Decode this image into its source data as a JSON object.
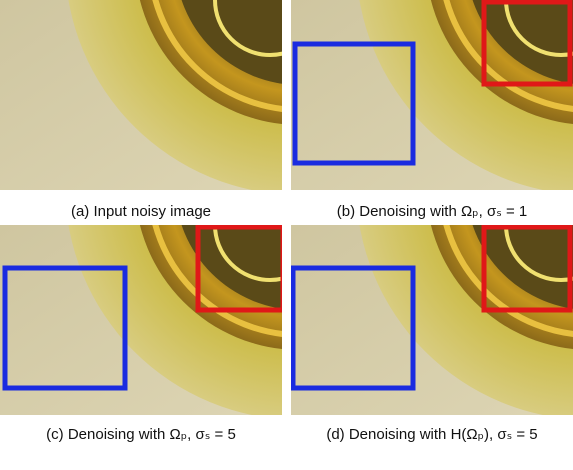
{
  "figure": {
    "panels": [
      {
        "caption": "(a) Input noisy image"
      },
      {
        "caption": "(b) Denoising with Ωₚ, σₛ = 1"
      },
      {
        "caption": "(c) Denoising with Ωₚ, σₛ = 5"
      },
      {
        "caption": "(d) Denoising with H(Ωₚ), σₛ = 5"
      }
    ]
  }
}
